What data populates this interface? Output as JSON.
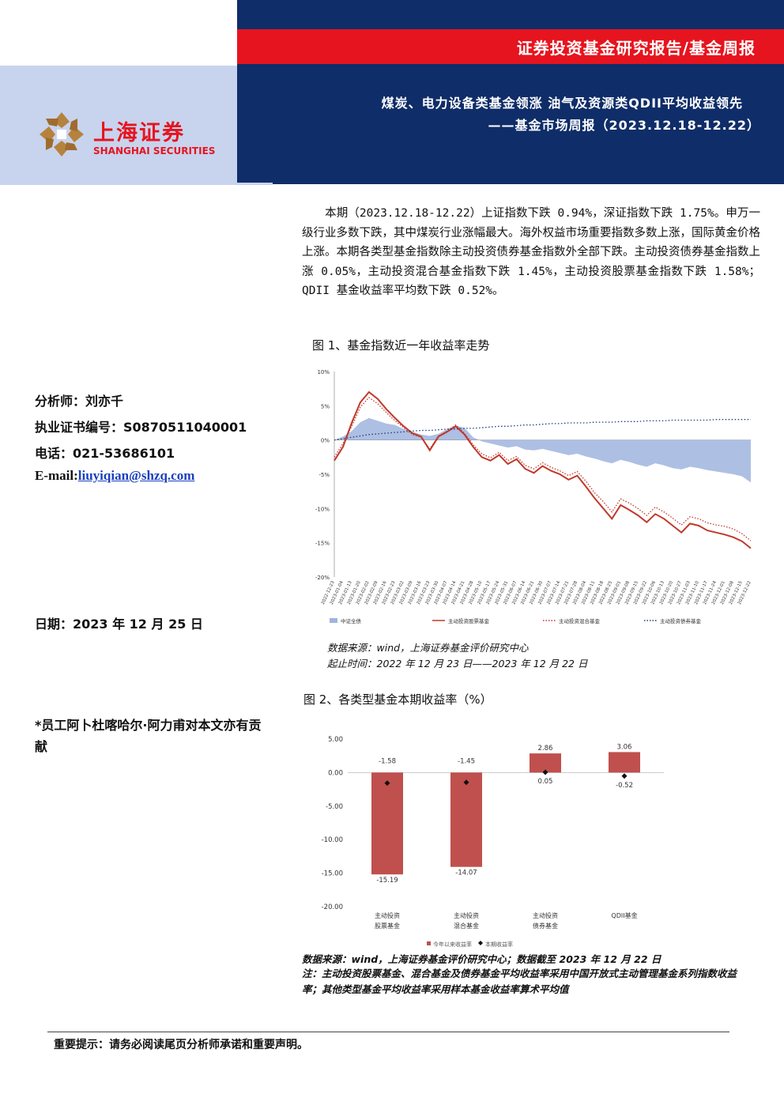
{
  "header": {
    "report_type": "证券投资基金研究报告/基金周报",
    "title_line1": "煤炭、电力设备类基金领涨  油气及资源类QDII平均收益领先",
    "title_line2": "——基金市场周报（2023.12.18-12.22）",
    "colors": {
      "navy": "#0f2d68",
      "red": "#e6141e",
      "light_blue": "#c8d3ee"
    }
  },
  "logo": {
    "cn": "上海证券",
    "en": "SHANGHAI SECURITIES"
  },
  "summary": "本期（2023.12.18-12.22）上证指数下跌 0.94%，深证指数下跌 1.75%。申万一级行业多数下跌，其中煤炭行业涨幅最大。海外权益市场重要指数多数上涨，国际黄金价格上涨。本期各类型基金指数除主动投资债券基金指数外全部下跌。主动投资债券基金指数上涨 0.05%，主动投资混合基金指数下跌 1.45%，主动投资股票基金指数下跌 1.58%；QDII 基金收益率平均数下跌 0.52%。",
  "analyst": {
    "name": "分析师：刘亦千",
    "cert": "执业证书编号：S0870511040001",
    "phone": "电话：021-53686101",
    "email_label": "E-mail:",
    "email": "liuyiqian@shzq.com"
  },
  "date": "日期：2023 年 12 月 25 日",
  "contribution": "*员工阿卜杜喀哈尔·阿力甫对本文亦有贡献",
  "figure1": {
    "title": "图 1、基金指数近一年收益率走势",
    "source": "数据来源：wind，上海证券基金评价研究中心",
    "period": "起止时间：2022 年 12 月 23 日——2023 年 12 月 22 日"
  },
  "figure2": {
    "title": "图 2、各类型基金本期收益率（%）",
    "source": "数据来源：wind，上海证券基金评价研究中心；数据截至 2023 年 12 月 22 日",
    "note": "注：主动投资股票基金、混合基金及债券基金平均收益率采用中国开放式主动管理基金系列指数收益率；其他类型基金平均收益率采用样本基金收益率算术平均值"
  },
  "footer": "重要提示：请务必阅读尾页分析师承诺和重要声明。",
  "chart_data": [
    {
      "type": "line",
      "x": [
        "2022-12-23",
        "2023-01-04",
        "2023-01-13",
        "2023-01-20",
        "2023-02-02",
        "2023-02-09",
        "2023-02-16",
        "2023-02-23",
        "2023-03-02",
        "2023-03-09",
        "2023-03-16",
        "2023-03-23",
        "2023-03-30",
        "2023-04-07",
        "2023-04-14",
        "2023-04-21",
        "2023-04-28",
        "2023-05-10",
        "2023-05-17",
        "2023-05-24",
        "2023-05-31",
        "2023-06-07",
        "2023-06-14",
        "2023-06-21",
        "2023-06-30",
        "2023-07-07",
        "2023-07-14",
        "2023-07-21",
        "2023-07-28",
        "2023-08-04",
        "2023-08-11",
        "2023-08-18",
        "2023-08-25",
        "2023-09-01",
        "2023-09-08",
        "2023-09-15",
        "2023-09-22",
        "2023-10-06",
        "2023-10-13",
        "2023-10-20",
        "2023-10-27",
        "2023-11-03",
        "2023-11-10",
        "2023-11-17",
        "2023-11-24",
        "2023-12-01",
        "2023-12-08",
        "2023-12-15",
        "2023-12-22"
      ],
      "ylim": [
        -20,
        10
      ],
      "yticks": [
        "10%",
        "5%",
        "0%",
        "-5%",
        "-10%",
        "-15%",
        "-20%"
      ],
      "series": [
        {
          "name": "中证全债",
          "style": "area",
          "color": "#9fb4de",
          "values": [
            0,
            0.5,
            1.3,
            2.6,
            3.2,
            2.8,
            2.4,
            2.2,
            1.6,
            1.2,
            0.8,
            0.6,
            0.9,
            1.6,
            2.1,
            1.8,
            0.4,
            -0.2,
            -0.5,
            -0.8,
            -1.1,
            -0.9,
            -1.4,
            -1.5,
            -1.3,
            -1.6,
            -1.9,
            -2.2,
            -2.0,
            -2.4,
            -2.7,
            -3.1,
            -3.4,
            -2.9,
            -3.2,
            -3.6,
            -3.9,
            -3.4,
            -3.7,
            -4.1,
            -4.3,
            -3.9,
            -4.1,
            -4.4,
            -4.6,
            -4.8,
            -5.0,
            -5.3,
            -6.2
          ]
        },
        {
          "name": "主动投资股票基金",
          "style": "solid",
          "color": "#c0392b",
          "values": [
            -3,
            -1,
            2.5,
            5.5,
            7.0,
            6.0,
            4.5,
            3.2,
            2.0,
            1.0,
            0.5,
            -1.5,
            0.5,
            1.2,
            2.0,
            0.8,
            -1.0,
            -2.5,
            -3.0,
            -2.2,
            -3.5,
            -2.8,
            -4.2,
            -4.8,
            -3.8,
            -4.5,
            -5.0,
            -5.8,
            -5.2,
            -6.8,
            -8.5,
            -10.0,
            -11.5,
            -9.5,
            -10.2,
            -11.0,
            -12.0,
            -10.8,
            -11.5,
            -12.5,
            -13.5,
            -12.2,
            -12.5,
            -13.2,
            -13.5,
            -13.8,
            -14.2,
            -14.8,
            -15.8
          ]
        },
        {
          "name": "主动投资混合基金",
          "style": "dotted-red",
          "color": "#c0392b",
          "values": [
            -2.5,
            -0.5,
            2.0,
            4.8,
            6.2,
            5.3,
            4.0,
            2.8,
            1.8,
            0.8,
            0.4,
            -1.3,
            0.6,
            1.3,
            2.2,
            1.0,
            -0.7,
            -2.0,
            -2.6,
            -1.8,
            -3.0,
            -2.4,
            -3.7,
            -4.2,
            -3.3,
            -4.0,
            -4.5,
            -5.2,
            -4.6,
            -6.0,
            -7.7,
            -9.0,
            -10.5,
            -8.6,
            -9.2,
            -10.0,
            -11.0,
            -9.8,
            -10.5,
            -11.4,
            -12.4,
            -11.2,
            -11.5,
            -12.1,
            -12.4,
            -12.6,
            -13.0,
            -13.7,
            -14.7
          ]
        },
        {
          "name": "主动投资债券基金",
          "style": "dotted-navy",
          "color": "#1f3d7a",
          "values": [
            0,
            0.2,
            0.4,
            0.6,
            0.8,
            0.9,
            1.0,
            1.1,
            1.2,
            1.3,
            1.4,
            1.4,
            1.5,
            1.6,
            1.6,
            1.7,
            1.7,
            1.8,
            1.9,
            2.0,
            2.0,
            2.1,
            2.2,
            2.2,
            2.3,
            2.4,
            2.4,
            2.5,
            2.5,
            2.5,
            2.6,
            2.6,
            2.6,
            2.7,
            2.7,
            2.7,
            2.8,
            2.8,
            2.8,
            2.9,
            2.9,
            2.9,
            2.9,
            2.9,
            3.0,
            3.0,
            3.0,
            3.0,
            3.0
          ]
        }
      ]
    },
    {
      "type": "bar",
      "categories": [
        "主动投资\n股票基金",
        "主动投资\n混合基金",
        "主动投资\n债券基金",
        "QDII基金"
      ],
      "ylim": [
        -20,
        5
      ],
      "yticks": [
        "5.00",
        "0.00",
        "-5.00",
        "-10.00",
        "-15.00",
        "-20.00"
      ],
      "series": [
        {
          "name": "今年以来收益率",
          "color": "#c0504d",
          "values": [
            -15.19,
            -14.07,
            2.86,
            3.06
          ]
        },
        {
          "name": "本期收益率",
          "color": "#111111",
          "values": [
            -1.58,
            -1.45,
            0.05,
            -0.52
          ]
        }
      ],
      "bar_labels": [
        "-15.19",
        "-14.07",
        "2.86",
        "3.06"
      ],
      "point_labels": [
        "-1.58",
        "-1.45",
        "0.05",
        "-0.52"
      ]
    }
  ]
}
